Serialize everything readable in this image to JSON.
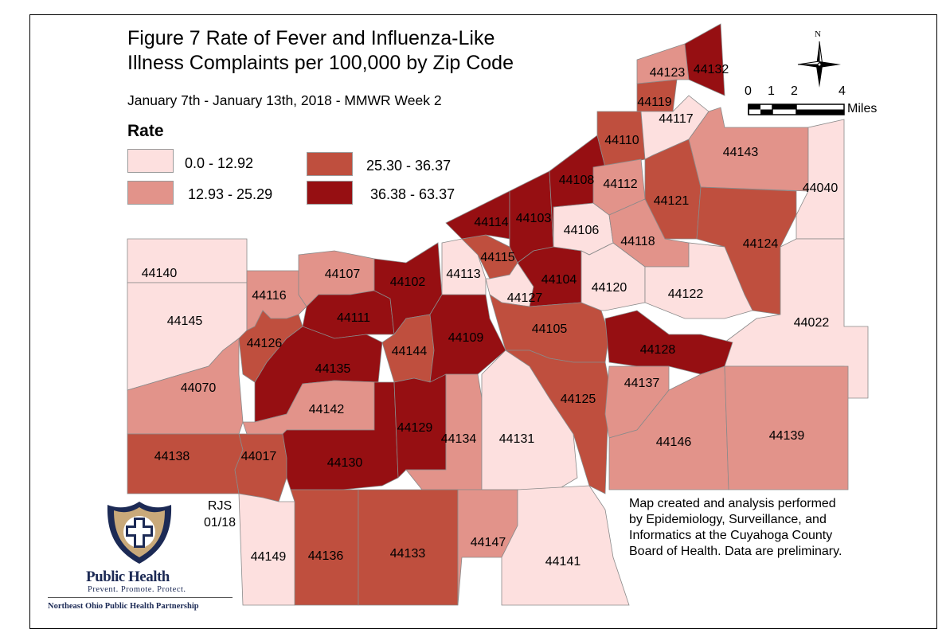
{
  "map": {
    "title_line1": "Figure 7 Rate of Fever and Influenza-Like",
    "title_line2": "Illness Complaints per 100,000 by Zip Code",
    "subtitle": "January 7th - January 13th, 2018 - MMWR Week 2",
    "legend": {
      "title": "Rate",
      "classes": [
        {
          "label": "0.0 - 12.92",
          "color": "#fde0df"
        },
        {
          "label": "12.93 - 25.29",
          "color": "#e2938a"
        },
        {
          "label": "25.30 - 36.37",
          "color": "#bf4f3e"
        },
        {
          "label": "36.38 - 63.37",
          "color": "#960f12"
        }
      ]
    },
    "zip_codes": [
      {
        "zip": "44140",
        "class": 0
      },
      {
        "zip": "44145",
        "class": 0
      },
      {
        "zip": "44070",
        "class": 1
      },
      {
        "zip": "44138",
        "class": 2
      },
      {
        "zip": "44017",
        "class": 2
      },
      {
        "zip": "44116",
        "class": 1
      },
      {
        "zip": "44107",
        "class": 1
      },
      {
        "zip": "44126",
        "class": 2
      },
      {
        "zip": "44111",
        "class": 3
      },
      {
        "zip": "44135",
        "class": 3
      },
      {
        "zip": "44142",
        "class": 1
      },
      {
        "zip": "44130",
        "class": 3
      },
      {
        "zip": "44102",
        "class": 3
      },
      {
        "zip": "44144",
        "class": 2
      },
      {
        "zip": "44109",
        "class": 3
      },
      {
        "zip": "44129",
        "class": 3
      },
      {
        "zip": "44134",
        "class": 1
      },
      {
        "zip": "44131",
        "class": 0
      },
      {
        "zip": "44113",
        "class": 0
      },
      {
        "zip": "44115",
        "class": 2
      },
      {
        "zip": "44114",
        "class": 3
      },
      {
        "zip": "44103",
        "class": 3
      },
      {
        "zip": "44127",
        "class": 0
      },
      {
        "zip": "44104",
        "class": 3
      },
      {
        "zip": "44105",
        "class": 2
      },
      {
        "zip": "44125",
        "class": 2
      },
      {
        "zip": "44106",
        "class": 0
      },
      {
        "zip": "44120",
        "class": 0
      },
      {
        "zip": "44108",
        "class": 3
      },
      {
        "zip": "44110",
        "class": 2
      },
      {
        "zip": "44112",
        "class": 1
      },
      {
        "zip": "44119",
        "class": 2
      },
      {
        "zip": "44123",
        "class": 1
      },
      {
        "zip": "44132",
        "class": 3
      },
      {
        "zip": "44117",
        "class": 0
      },
      {
        "zip": "44121",
        "class": 2
      },
      {
        "zip": "44118",
        "class": 1
      },
      {
        "zip": "44143",
        "class": 1
      },
      {
        "zip": "44124",
        "class": 2
      },
      {
        "zip": "44040",
        "class": 0
      },
      {
        "zip": "44022",
        "class": 0
      },
      {
        "zip": "44122",
        "class": 0
      },
      {
        "zip": "44128",
        "class": 3
      },
      {
        "zip": "44137",
        "class": 1
      },
      {
        "zip": "44146",
        "class": 1
      },
      {
        "zip": "44139",
        "class": 1
      },
      {
        "zip": "44136",
        "class": 2
      },
      {
        "zip": "44133",
        "class": 2
      },
      {
        "zip": "44147",
        "class": 1
      },
      {
        "zip": "44141",
        "class": 0
      },
      {
        "zip": "44149",
        "class": 0
      }
    ],
    "scale": {
      "ticks": [
        "0",
        "1",
        "2",
        "4"
      ],
      "unit": "Miles"
    },
    "north_label": "N",
    "credit_lines": [
      "Map created and analysis performed",
      "by Epidemiology, Surveillance, and",
      "Informatics at the Cuyahoga County",
      "Board of Health. Data are preliminary."
    ],
    "author_initials": "RJS",
    "author_date": "01/18",
    "logo": {
      "title": "Public Health",
      "tagline": "Prevent. Promote. Protect.",
      "org": "Northeast Ohio Public Health Partnership"
    }
  }
}
